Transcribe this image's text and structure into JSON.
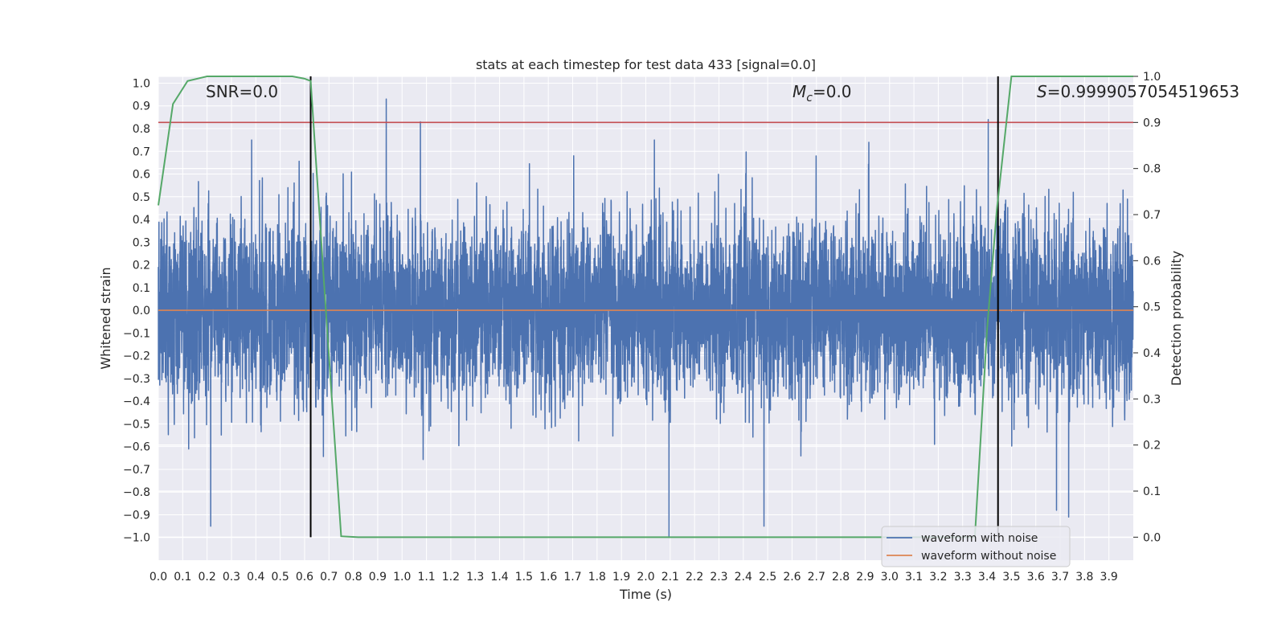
{
  "chart_data": {
    "type": "line",
    "title": "stats at each timestep for test data 433 [signal=0.0]",
    "xlabel": "Time (s)",
    "ylabel": "Whitened strain",
    "y2label": "Detection probability",
    "xlim": [
      0.0,
      4.0
    ],
    "ylim": [
      -1.1,
      1.03
    ],
    "y2lim": [
      -0.05,
      1.0
    ],
    "x_ticks": [
      "0.0",
      "0.1",
      "0.2",
      "0.3",
      "0.4",
      "0.5",
      "0.6",
      "0.7",
      "0.8",
      "0.9",
      "1.0",
      "1.1",
      "1.2",
      "1.3",
      "1.4",
      "1.5",
      "1.6",
      "1.7",
      "1.8",
      "1.9",
      "2.0",
      "2.1",
      "2.2",
      "2.3",
      "2.4",
      "2.5",
      "2.6",
      "2.7",
      "2.8",
      "2.9",
      "3.0",
      "3.1",
      "3.2",
      "3.3",
      "3.4",
      "3.5",
      "3.6",
      "3.7",
      "3.8",
      "3.9"
    ],
    "y_ticks": [
      "1.0",
      "0.9",
      "0.8",
      "0.7",
      "0.6",
      "0.5",
      "0.4",
      "0.3",
      "0.2",
      "0.1",
      "0.0",
      "−0.1",
      "−0.2",
      "−0.3",
      "−0.4",
      "−0.5",
      "−0.6",
      "−0.7",
      "−0.8",
      "−0.9",
      "−1.0"
    ],
    "y2_ticks": [
      "1.0",
      "0.9",
      "0.8",
      "0.7",
      "0.6",
      "0.5",
      "0.4",
      "0.3",
      "0.2",
      "0.1",
      "0.0"
    ],
    "annotations": {
      "snr": "SNR=0.0",
      "mc_symbol": "M",
      "mc_sub": "c",
      "mc_value": "=0.0",
      "s_symbol": "S",
      "s_value": "=0.999905705451965​3"
    },
    "threshold": {
      "y2": 0.9,
      "color": "#c44e52"
    },
    "detection_bounds": [
      0.625,
      3.445
    ],
    "series": [
      {
        "name": "waveform with noise",
        "color": "#4c72b0",
        "generated": true,
        "sample_rate": 2048,
        "amplitude_range": [
          -1.0,
          0.93
        ],
        "peaks": [
          [
            0.383,
            0.75
          ],
          [
            0.935,
            0.93
          ],
          [
            1.075,
            0.83
          ],
          [
            2.035,
            0.75
          ],
          [
            2.915,
            0.74
          ],
          [
            3.405,
            0.84
          ],
          [
            2.095,
            -1.0
          ],
          [
            0.215,
            -0.95
          ],
          [
            2.485,
            -0.95
          ],
          [
            3.685,
            -0.88
          ],
          [
            3.735,
            -0.91
          ]
        ]
      },
      {
        "name": "waveform without noise",
        "color": "#dd8452",
        "y": 0.0
      },
      {
        "name": "detection probability",
        "color": "#55a868",
        "x": [
          0.0,
          0.06,
          0.12,
          0.2,
          0.3,
          0.4,
          0.55,
          0.6,
          0.625,
          0.68,
          0.75,
          0.82,
          1.0,
          2.0,
          3.0,
          3.35,
          3.4,
          3.44,
          3.5,
          3.6,
          3.8,
          4.0
        ],
        "y": [
          0.72,
          0.94,
          0.99,
          1.0,
          1.0,
          1.0,
          1.0,
          0.995,
          0.99,
          0.55,
          0.002,
          0.0,
          0.0,
          0.0,
          0.0,
          0.0,
          0.45,
          0.71,
          1.0,
          1.0,
          1.0,
          1.0
        ]
      }
    ],
    "legend": {
      "placement": "lower-right",
      "entries": [
        "waveform with noise",
        "waveform without noise"
      ]
    },
    "colors": {
      "axes_bg": "#eaeaf2",
      "grid": "#ffffff",
      "vline": "#000000"
    }
  }
}
